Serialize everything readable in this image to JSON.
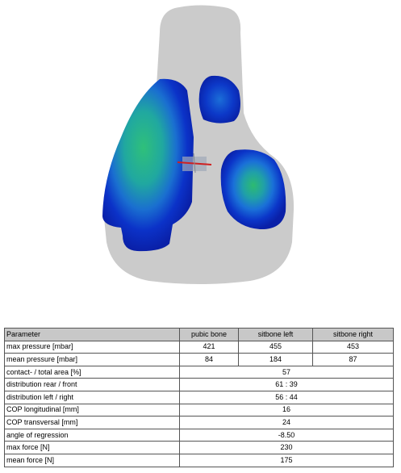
{
  "table": {
    "header": [
      "Parameter",
      "pubic bone",
      "sitbone left",
      "sitbone right"
    ],
    "rows": [
      [
        "max pressure [mbar]",
        "421",
        "455",
        "453"
      ],
      [
        "mean pressure [mbar]",
        "84",
        "184",
        "87"
      ],
      [
        "contact- / total area [%]",
        "57"
      ],
      [
        "distribution rear / front",
        "61 : 39"
      ],
      [
        "distribution left / right",
        "56 : 44"
      ],
      [
        "COP longitudinal [mm]",
        "16"
      ],
      [
        "COP transversal [mm]",
        "24"
      ],
      [
        "angle of regression",
        "-8.50"
      ],
      [
        "max force [N]",
        "230"
      ],
      [
        "mean force [N]",
        "175"
      ]
    ]
  }
}
